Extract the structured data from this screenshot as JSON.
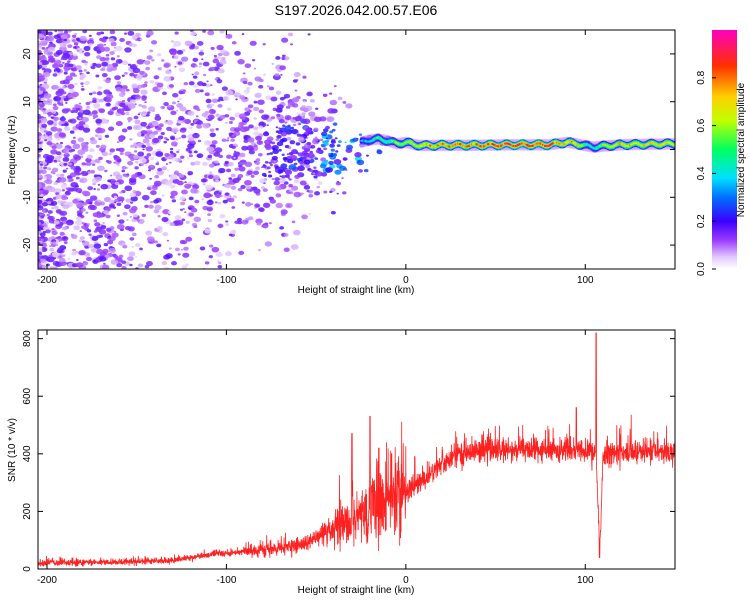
{
  "title": "S197.2026.042.00.57.E06",
  "chart_data": [
    {
      "type": "heatmap",
      "xlabel": "Height of straight line (km)",
      "ylabel": "Frequency (Hz)",
      "xlim": [
        -205,
        150
      ],
      "ylim": [
        -25,
        25
      ],
      "xticks": [
        -200,
        -100,
        0,
        100
      ],
      "xtick_labels": [
        "-200",
        "-100",
        "0",
        "100"
      ],
      "yticks": [
        -20,
        -10,
        0,
        10,
        20
      ],
      "ytick_labels": [
        "-20",
        "-10",
        "0",
        "10",
        "20"
      ],
      "colorbar": {
        "label": "Normalized spectral amplitude",
        "range": [
          0,
          1
        ],
        "ticks": [
          0.0,
          0.2,
          0.4,
          0.6,
          0.8
        ],
        "tick_labels": [
          "0.0",
          "0.2",
          "0.4",
          "0.6",
          "0.8"
        ]
      },
      "ridge": {
        "description_x": [
          -25,
          -20,
          -15,
          -10,
          -5,
          0,
          5,
          10,
          20,
          40,
          60,
          80,
          90,
          95,
          100,
          105,
          110,
          120,
          150
        ],
        "frequency_hz": [
          1.5,
          2.0,
          2.2,
          1.8,
          1.2,
          1.5,
          1.0,
          0.8,
          0.9,
          0.9,
          1.0,
          1.0,
          1.5,
          1.2,
          0.8,
          0.5,
          0.7,
          1.0,
          1.2
        ],
        "amplitude": [
          0.3,
          0.4,
          0.5,
          0.45,
          0.55,
          0.6,
          0.65,
          0.7,
          0.75,
          0.8,
          0.85,
          0.85,
          0.7,
          0.75,
          0.5,
          0.4,
          0.6,
          0.7,
          0.65
        ]
      }
    },
    {
      "type": "line",
      "xlabel": "Height of straight line (km)",
      "ylabel": "SNR (10 * v/v)",
      "xlim": [
        -205,
        150
      ],
      "ylim": [
        0,
        830
      ],
      "xticks": [
        -200,
        -100,
        0,
        100
      ],
      "xtick_labels": [
        "-200",
        "-100",
        "0",
        "100"
      ],
      "yticks": [
        0,
        200,
        400,
        600,
        800
      ],
      "ytick_labels": [
        "0",
        "200",
        "400",
        "600",
        "800"
      ],
      "color": "#ff0000",
      "series": [
        {
          "name": "SNR",
          "trend_x": [
            -205,
            -150,
            -130,
            -110,
            -90,
            -70,
            -55,
            -40,
            -30,
            -20,
            -10,
            0,
            10,
            20,
            30,
            40,
            60,
            80,
            100,
            106,
            108,
            110,
            130,
            150
          ],
          "trend_y": [
            20,
            25,
            30,
            50,
            60,
            70,
            90,
            130,
            160,
            200,
            240,
            270,
            310,
            360,
            400,
            410,
            410,
            410,
            410,
            400,
            60,
            400,
            405,
            410
          ],
          "spikes": [
            {
              "x": -30,
              "y": 470
            },
            {
              "x": -20,
              "y": 530
            },
            {
              "x": -15,
              "y": 420
            },
            {
              "x": -8,
              "y": 400
            },
            {
              "x": 5,
              "y": 390
            },
            {
              "x": 95,
              "y": 560
            },
            {
              "x": 106,
              "y": 820
            },
            {
              "x": 108,
              "y": 40
            }
          ]
        }
      ]
    }
  ],
  "colors": {
    "line": "#ff0000",
    "scatter_base": "#7c1fe0",
    "light_scatter": "#c8a6f2"
  }
}
